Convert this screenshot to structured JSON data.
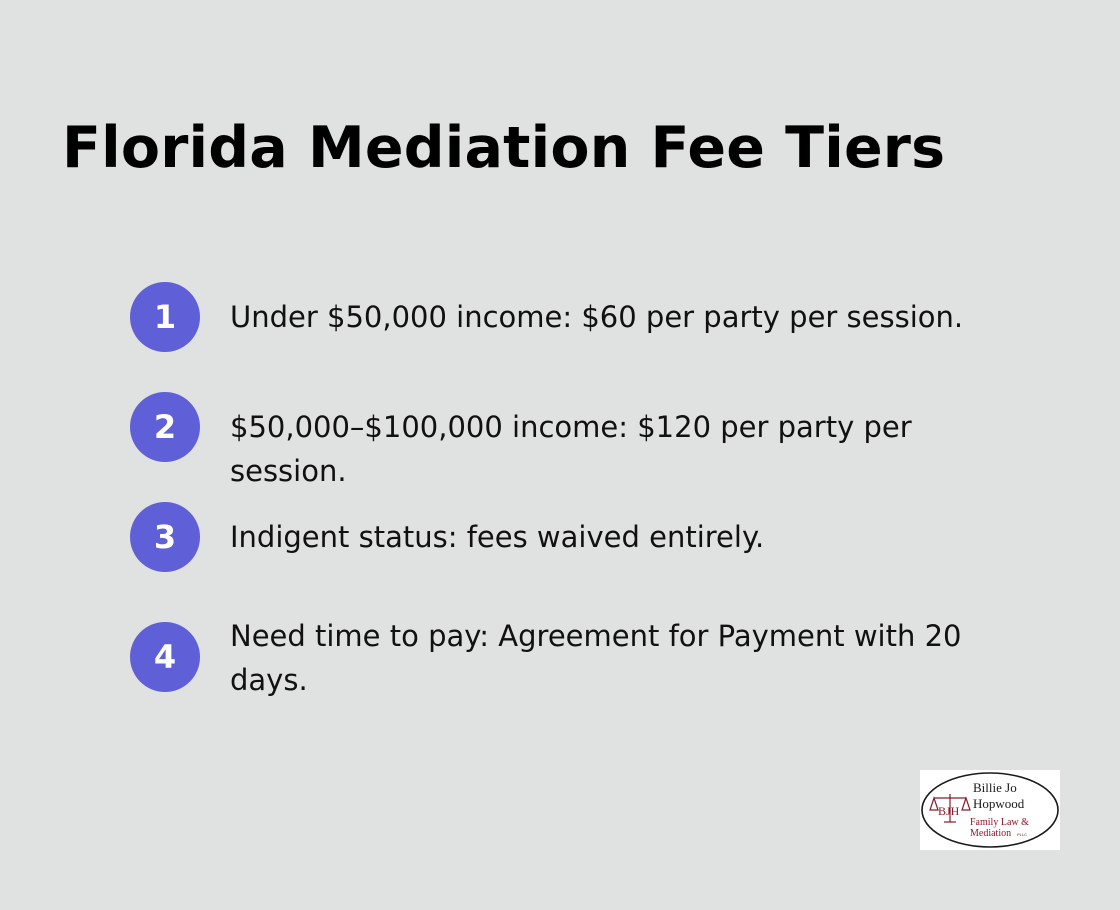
{
  "title": "Florida Mediation Fee Tiers",
  "colors": {
    "background": "#e0e1e1",
    "badge": "#5f5fd7",
    "badge_text": "#ffffff",
    "logo_accent": "#8b1a2b"
  },
  "items": [
    {
      "number": "1",
      "text": "Under $50,000 income: $60 per party per session."
    },
    {
      "number": "2",
      "text": "$50,000–$100,000 income: $120 per party per session."
    },
    {
      "number": "3",
      "text": "Indigent status: fees waived entirely."
    },
    {
      "number": "4",
      "text": "Need time to pay: Agreement for Payment with 20 days."
    }
  ],
  "logo": {
    "line1": "Billie Jo",
    "line2": "Hopwood",
    "line3": "Family Law &",
    "line4": "Mediation",
    "suffix": "PLLC",
    "monogram": "BJH",
    "icon": "scales-of-justice-icon"
  }
}
